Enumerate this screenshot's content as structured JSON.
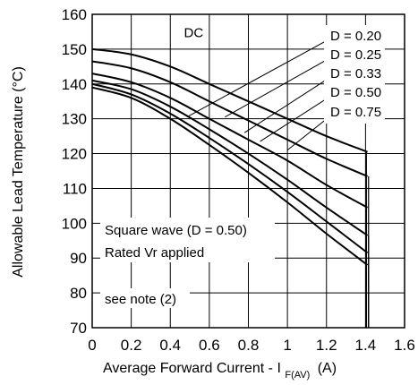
{
  "chart_data": {
    "type": "line",
    "xlabel": "Average Forward Current - I",
    "xlabel_subscript": "F(AV)",
    "xlabel_unit": "(A)",
    "ylabel": "Allowable Lead Temperature (°C)",
    "xlim": [
      0,
      1.6
    ],
    "ylim": [
      70,
      160
    ],
    "xticks": [
      "0",
      "0.2",
      "0.4",
      "0.6",
      "0.8",
      "1",
      "1.2",
      "1.4",
      "1.6"
    ],
    "yticks": [
      "70",
      "80",
      "90",
      "100",
      "110",
      "120",
      "130",
      "140",
      "150",
      "160"
    ],
    "grid": true,
    "series": [
      {
        "name": "DC",
        "x": [
          0,
          0.2,
          0.4,
          0.6,
          0.8,
          1.0,
          1.2,
          1.41
        ],
        "y": [
          150,
          148.5,
          145,
          140,
          135,
          130,
          125,
          120.5
        ]
      },
      {
        "name": "D = 0.20",
        "x": [
          0,
          0.2,
          0.4,
          0.6,
          0.8,
          1.0,
          1.2,
          1.41
        ],
        "y": [
          146.5,
          144.5,
          140.5,
          135,
          129.5,
          124,
          118.5,
          113.5
        ]
      },
      {
        "name": "D = 0.25",
        "x": [
          0,
          0.2,
          0.4,
          0.6,
          0.8,
          1.0,
          1.2,
          1.41
        ],
        "y": [
          143,
          140.5,
          136,
          130,
          124,
          118,
          111,
          104.5
        ]
      },
      {
        "name": "D = 0.33",
        "x": [
          0,
          0.2,
          0.4,
          0.6,
          0.8,
          1.0,
          1.2,
          1.41
        ],
        "y": [
          141,
          138.5,
          133.5,
          127,
          120,
          112.5,
          104.5,
          96.5
        ]
      },
      {
        "name": "D = 0.50",
        "x": [
          0,
          0.2,
          0.4,
          0.6,
          0.8,
          1.0,
          1.2,
          1.41
        ],
        "y": [
          140,
          137,
          131.5,
          124.5,
          117,
          109,
          100.5,
          91.5
        ]
      },
      {
        "name": "D = 0.75",
        "x": [
          0,
          0.2,
          0.4,
          0.6,
          0.8,
          1.0,
          1.2,
          1.41
        ],
        "y": [
          139,
          136,
          130,
          122.5,
          114.5,
          106,
          97,
          88
        ]
      }
    ],
    "cutoff_x": 1.41,
    "annotations": {
      "dc": "DC",
      "legend": [
        "D = 0.20",
        "D = 0.25",
        "D = 0.33",
        "D = 0.50",
        "D = 0.75"
      ],
      "note1": "Square wave (D = 0.50)",
      "note2": "Rated Vr  applied",
      "note3": "see note (2)"
    }
  }
}
